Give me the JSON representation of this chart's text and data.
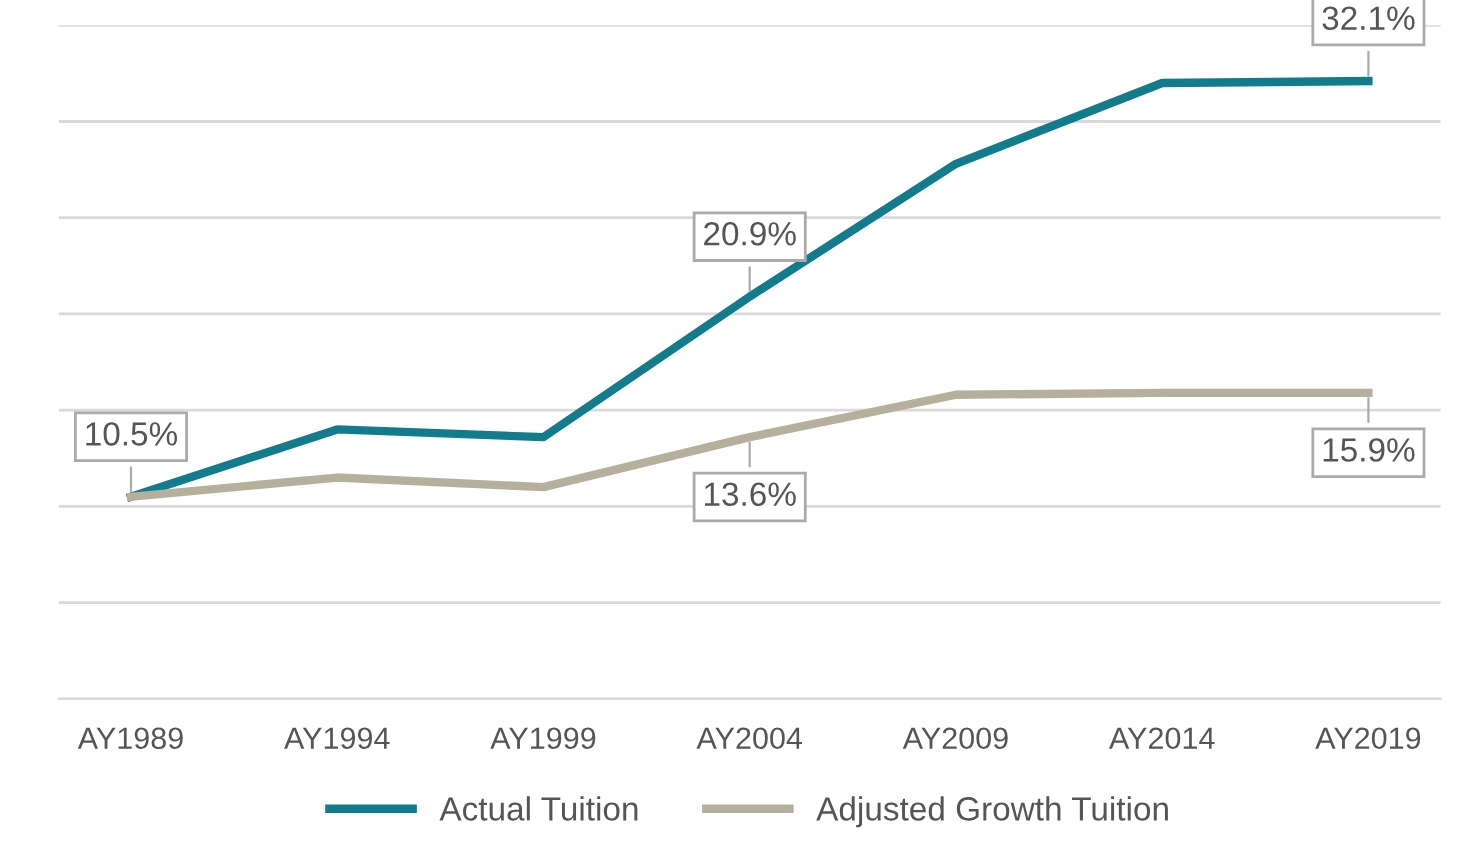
{
  "chart_data": {
    "type": "line",
    "categories": [
      "AY1989",
      "AY1994",
      "AY1999",
      "AY2004",
      "AY2009",
      "AY2014",
      "AY2019"
    ],
    "series": [
      {
        "name": "Actual Tuition",
        "color": "#127c8c",
        "values": [
          10.5,
          14.0,
          13.6,
          20.9,
          27.8,
          32.0,
          32.1
        ],
        "value_labels": [
          "10.5%",
          null,
          null,
          "20.9%",
          null,
          null,
          "32.1%"
        ]
      },
      {
        "name": "Adjusted Growth Tuition",
        "color": "#b5b09c",
        "values": [
          10.5,
          11.5,
          11.0,
          13.6,
          15.8,
          15.9,
          15.9
        ],
        "value_labels": [
          null,
          null,
          null,
          "13.6%",
          null,
          null,
          "15.9%"
        ]
      }
    ],
    "ylim": [
      0,
      35
    ],
    "yticks": [
      {
        "value": 0,
        "label": null
      },
      {
        "value": 5,
        "label": null
      },
      {
        "value": 10,
        "label": null
      },
      {
        "value": 15,
        "label": null
      },
      {
        "value": 20,
        "label": null
      },
      {
        "value": 25,
        "label": null
      },
      {
        "value": 30,
        "label": null
      },
      {
        "value": 35,
        "label": null
      }
    ],
    "grid": "y",
    "legend": "bottom",
    "tick_labels": "x",
    "marker": "none",
    "line_style": "solid"
  }
}
